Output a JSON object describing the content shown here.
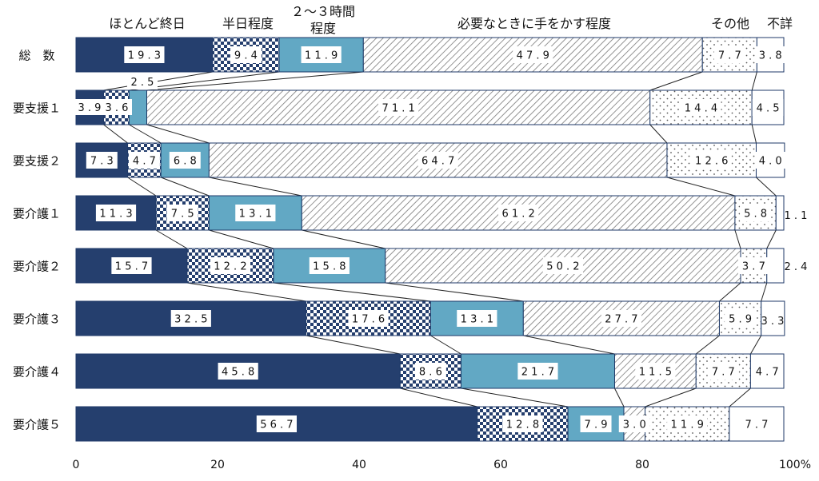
{
  "chart_data": {
    "type": "bar",
    "orientation": "horizontal",
    "stacked": "percent",
    "categories": [
      "総　数",
      "要支援１",
      "要支援２",
      "要介護１",
      "要介護２",
      "要介護３",
      "要介護４",
      "要介護５"
    ],
    "series": [
      {
        "name": "ほとんど終日",
        "values": [
          19.3,
          3.9,
          7.3,
          11.3,
          15.7,
          32.5,
          45.8,
          56.7
        ]
      },
      {
        "name": "半日程度",
        "values": [
          9.4,
          3.6,
          4.7,
          7.5,
          12.2,
          17.6,
          8.6,
          12.8
        ]
      },
      {
        "name": "２～３時間\n程度",
        "values": [
          11.9,
          2.5,
          6.8,
          13.1,
          15.8,
          13.1,
          21.7,
          7.9
        ]
      },
      {
        "name": "必要なときに手をかす程度",
        "values": [
          47.9,
          71.1,
          64.7,
          61.2,
          50.2,
          27.7,
          11.5,
          3.0
        ]
      },
      {
        "name": "その他",
        "values": [
          7.7,
          14.4,
          12.6,
          5.8,
          3.7,
          5.9,
          7.7,
          11.9
        ]
      },
      {
        "name": "不詳",
        "values": [
          3.8,
          4.5,
          4.0,
          1.1,
          2.4,
          3.3,
          4.7,
          7.7
        ]
      }
    ],
    "x_ticks": [
      "0",
      "20",
      "40",
      "60",
      "80",
      "100%"
    ],
    "xlim": [
      0,
      100
    ],
    "colors": [
      "#253f6e",
      "#253f6e",
      "#62a8c4",
      "#7f7f7f",
      "#9a9a9a",
      "#ffffff"
    ],
    "legend_placement": "top",
    "grid": false
  }
}
